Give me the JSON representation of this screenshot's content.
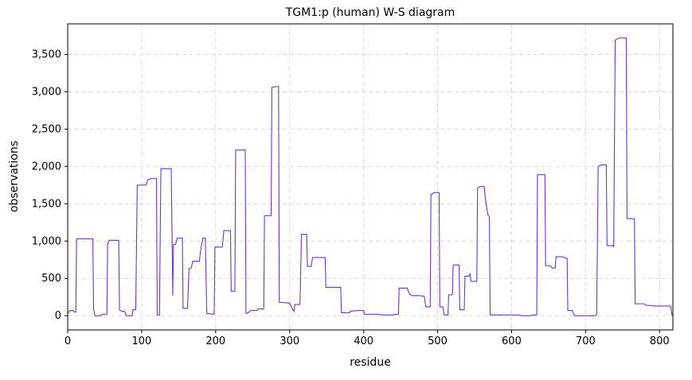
{
  "chart_data": {
    "type": "line",
    "title": "TGM1:p (human) W-S diagram",
    "x_label": "residue",
    "y_label": "observations",
    "color": "#6a35d6",
    "grid": true,
    "xlim": [
      0,
      818
    ],
    "ylim": [
      -190,
      3910
    ],
    "xticks": [
      0,
      100,
      200,
      300,
      400,
      500,
      600,
      700,
      800
    ],
    "yticks": [
      0,
      500,
      {
        "value": 1000,
        "label": "1,000"
      },
      {
        "value": 1500,
        "label": "1,500"
      },
      {
        "value": 2000,
        "label": "2,000"
      },
      {
        "value": 2500,
        "label": "2,500"
      },
      {
        "value": 3000,
        "label": "3,000"
      },
      {
        "value": 3500,
        "label": "3,500"
      }
    ],
    "x": [
      0,
      3,
      7,
      9,
      11,
      12,
      34,
      35,
      37,
      45,
      47,
      53,
      54,
      56,
      69,
      70,
      73,
      77,
      79,
      87,
      88,
      92,
      94,
      106,
      108,
      113,
      120,
      121,
      124,
      126,
      140,
      142,
      143,
      146,
      148,
      155,
      156,
      162,
      164,
      167,
      169,
      178,
      180,
      183,
      186,
      188,
      198,
      199,
      209,
      211,
      220,
      221,
      226,
      227,
      240,
      241,
      244,
      247,
      256,
      257,
      265,
      266,
      275,
      276,
      283,
      285,
      286,
      300,
      303,
      306,
      307,
      314,
      316,
      323,
      324,
      329,
      331,
      348,
      349,
      369,
      370,
      381,
      382,
      392,
      400,
      401,
      420,
      425,
      440,
      441,
      447,
      448,
      459,
      462,
      465,
      475,
      482,
      484,
      490,
      491,
      493,
      495,
      502,
      503,
      507,
      509,
      514,
      515,
      520,
      521,
      529,
      530,
      536,
      537,
      542,
      544,
      545,
      553,
      554,
      557,
      563,
      564,
      566,
      568,
      570,
      571,
      600,
      610,
      615,
      625,
      628,
      634,
      635,
      645,
      646,
      652,
      655,
      659,
      660,
      670,
      672,
      675,
      676,
      682,
      685,
      700,
      713,
      715,
      717,
      721,
      728,
      729,
      737,
      738,
      740,
      745,
      755,
      756,
      766,
      767,
      779,
      782,
      795,
      815,
      817
    ],
    "values": [
      30,
      70,
      70,
      50,
      50,
      1030,
      1030,
      80,
      0,
      0,
      20,
      20,
      960,
      1010,
      1010,
      80,
      60,
      60,
      0,
      0,
      80,
      80,
      1750,
      1750,
      1820,
      1840,
      1840,
      10,
      10,
      1970,
      1970,
      270,
      950,
      960,
      1040,
      1040,
      100,
      100,
      630,
      640,
      730,
      730,
      900,
      1040,
      1040,
      30,
      20,
      920,
      920,
      1140,
      1140,
      330,
      330,
      2220,
      2220,
      30,
      40,
      70,
      70,
      90,
      90,
      1340,
      1340,
      3060,
      3070,
      3070,
      180,
      170,
      100,
      60,
      150,
      150,
      1090,
      1090,
      660,
      660,
      780,
      780,
      380,
      380,
      40,
      40,
      60,
      70,
      70,
      20,
      20,
      10,
      10,
      20,
      20,
      370,
      370,
      290,
      270,
      270,
      260,
      120,
      120,
      1630,
      1630,
      1650,
      1650,
      120,
      120,
      10,
      10,
      280,
      280,
      680,
      680,
      80,
      80,
      530,
      530,
      560,
      460,
      460,
      1710,
      1730,
      1730,
      1610,
      1470,
      1350,
      1330,
      10,
      10,
      10,
      0,
      0,
      10,
      10,
      1890,
      1890,
      670,
      670,
      640,
      640,
      790,
      790,
      770,
      770,
      70,
      70,
      0,
      0,
      0,
      20,
      2000,
      2020,
      2020,
      940,
      940,
      920,
      3690,
      3720,
      3720,
      1300,
      1300,
      160,
      160,
      140,
      130,
      130,
      0
    ]
  }
}
